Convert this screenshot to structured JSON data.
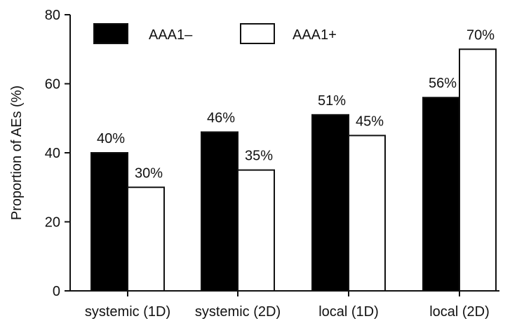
{
  "chart_data": {
    "type": "bar",
    "title": "",
    "xlabel": "",
    "ylabel": "Proportion of AEs (%)",
    "ylim": [
      0,
      80
    ],
    "yticks": [
      0,
      20,
      40,
      60,
      80
    ],
    "categories": [
      "systemic (1D)",
      "systemic (2D)",
      "local (1D)",
      "local (2D)"
    ],
    "series": [
      {
        "name": "AAA1–",
        "values": [
          40,
          46,
          51,
          56
        ],
        "labels": [
          "40%",
          "46%",
          "51%",
          "56%"
        ],
        "color": "#000000"
      },
      {
        "name": "AAA1+",
        "values": [
          30,
          35,
          45,
          70
        ],
        "labels": [
          "30%",
          "35%",
          "45%",
          "70%"
        ],
        "color": "#ffffff"
      }
    ],
    "grid": false,
    "legend": "top-left"
  }
}
